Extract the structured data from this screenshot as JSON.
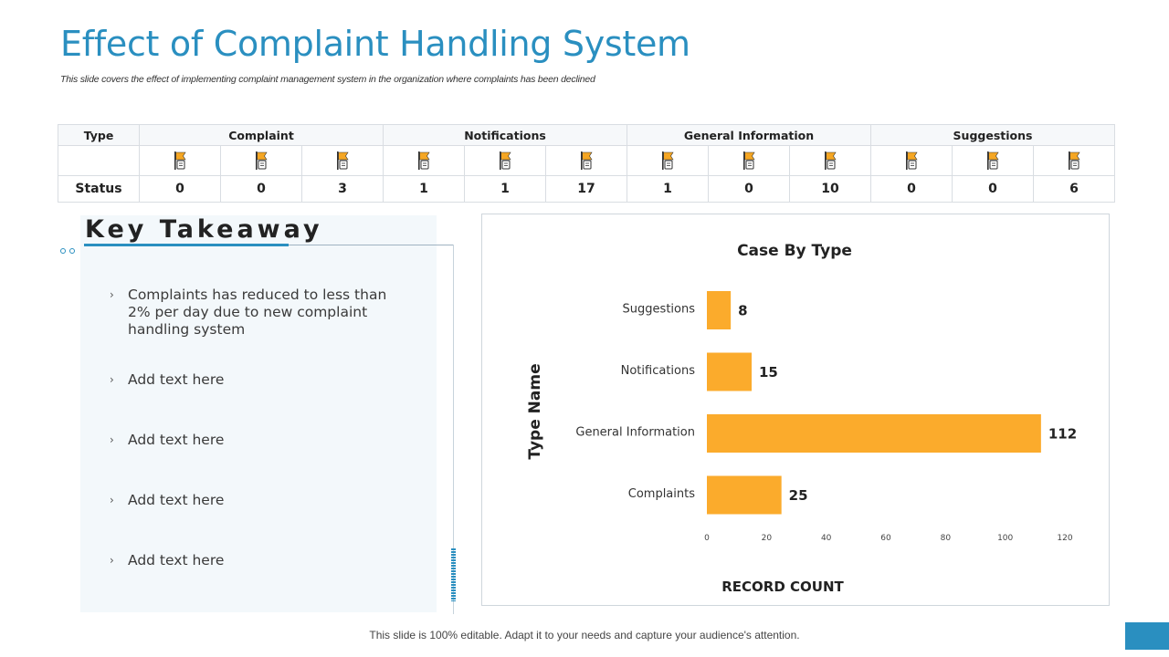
{
  "title": "Effect of Complaint Handling System",
  "subtitle": "This slide covers the effect of implementing complaint management system in the organization where complaints has been declined",
  "status_table": {
    "type_label": "Type",
    "status_label": "Status",
    "groups": [
      "Complaint",
      "Notifications",
      "General Information",
      "Suggestions"
    ],
    "values": [
      "0",
      "0",
      "3",
      "1",
      "1",
      "17",
      "1",
      "0",
      "10",
      "0",
      "0",
      "6"
    ],
    "flag_icon": "flag-document-icon",
    "flag_color": "#f5a623"
  },
  "takeaway": {
    "heading": "Key Takeaway",
    "bullets": [
      "Complaints has reduced to less than 2% per day due to new complaint handling system",
      "Add text here",
      "Add text here",
      "Add text here",
      "Add text here"
    ]
  },
  "chart_data": {
    "type": "bar",
    "orientation": "horizontal",
    "title": "Case By Type",
    "categories": [
      "Suggestions",
      "Notifications",
      "General Information",
      "Complaints"
    ],
    "values": [
      8,
      15,
      112,
      25
    ],
    "xlabel": "RECORD COUNT",
    "ylabel": "Type Name",
    "xlim": [
      0,
      120
    ],
    "xticks": [
      0,
      20,
      40,
      60,
      80,
      100,
      120
    ],
    "bar_color": "#fbab2c",
    "grid": false
  },
  "footer": "This slide is 100% editable. Adapt it to your needs and capture your audience's attention.",
  "accent_color": "#2a8fc0"
}
